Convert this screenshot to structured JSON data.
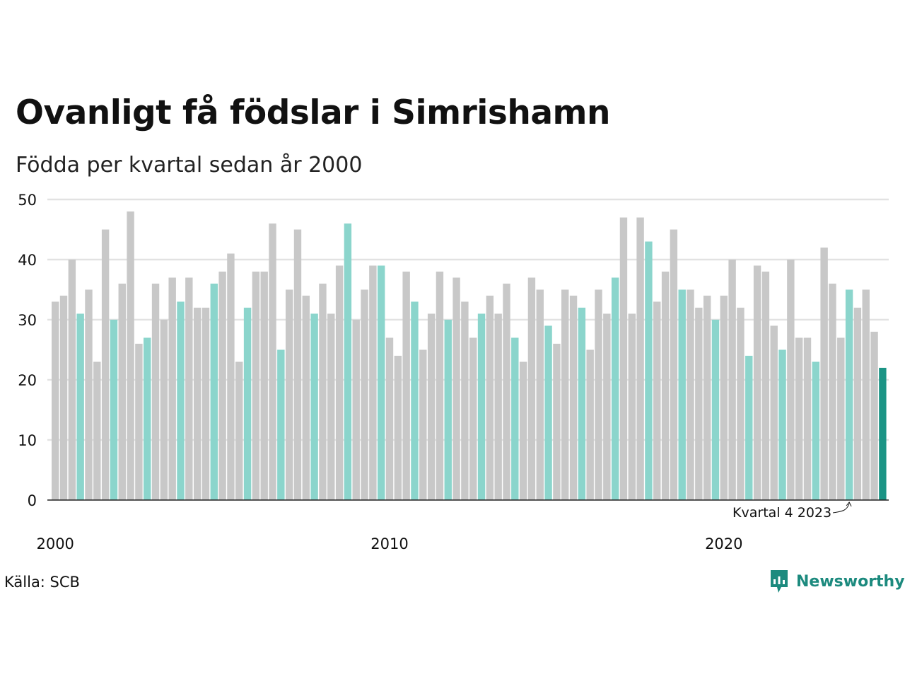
{
  "header": {
    "title": "Ovanligt få födslar i Simrishamn",
    "subtitle": "Födda per kvartal sedan år 2000"
  },
  "footer": {
    "source": "Källa: SCB",
    "brand": "Newsworthy"
  },
  "colors": {
    "bar_default": "#c8c8c8",
    "bar_q4": "#8bd5cc",
    "bar_latest": "#1b9485",
    "gridline": "#e2e2e2",
    "axis": "#222222",
    "brand": "#1c8a7e"
  },
  "chart_data": {
    "type": "bar",
    "title": "Ovanligt få födslar i Simrishamn",
    "subtitle": "Födda per kvartal sedan år 2000",
    "xlabel": "",
    "ylabel": "",
    "ylim": [
      0,
      50
    ],
    "y_ticks": [
      0,
      10,
      20,
      30,
      40,
      50
    ],
    "x_ticks": [
      "2000",
      "2010",
      "2020"
    ],
    "grid": "horizontal",
    "categories": [
      "2000 Q1",
      "2000 Q2",
      "2000 Q3",
      "2000 Q4",
      "2001 Q1",
      "2001 Q2",
      "2001 Q3",
      "2001 Q4",
      "2002 Q1",
      "2002 Q2",
      "2002 Q3",
      "2002 Q4",
      "2003 Q1",
      "2003 Q2",
      "2003 Q3",
      "2003 Q4",
      "2004 Q1",
      "2004 Q2",
      "2004 Q3",
      "2004 Q4",
      "2005 Q1",
      "2005 Q2",
      "2005 Q3",
      "2005 Q4",
      "2006 Q1",
      "2006 Q2",
      "2006 Q3",
      "2006 Q4",
      "2007 Q1",
      "2007 Q2",
      "2007 Q3",
      "2007 Q4",
      "2008 Q1",
      "2008 Q2",
      "2008 Q3",
      "2008 Q4",
      "2009 Q1",
      "2009 Q2",
      "2009 Q3",
      "2009 Q4",
      "2010 Q1",
      "2010 Q2",
      "2010 Q3",
      "2010 Q4",
      "2011 Q1",
      "2011 Q2",
      "2011 Q3",
      "2011 Q4",
      "2012 Q1",
      "2012 Q2",
      "2012 Q3",
      "2012 Q4",
      "2013 Q1",
      "2013 Q2",
      "2013 Q3",
      "2013 Q4",
      "2014 Q1",
      "2014 Q2",
      "2014 Q3",
      "2014 Q4",
      "2015 Q1",
      "2015 Q2",
      "2015 Q3",
      "2015 Q4",
      "2016 Q1",
      "2016 Q2",
      "2016 Q3",
      "2016 Q4",
      "2017 Q1",
      "2017 Q2",
      "2017 Q3",
      "2017 Q4",
      "2018 Q1",
      "2018 Q2",
      "2018 Q3",
      "2018 Q4",
      "2019 Q1",
      "2019 Q2",
      "2019 Q3",
      "2019 Q4",
      "2020 Q1",
      "2020 Q2",
      "2020 Q3",
      "2020 Q4",
      "2021 Q1",
      "2021 Q2",
      "2021 Q3",
      "2021 Q4",
      "2022 Q1",
      "2022 Q2",
      "2022 Q3",
      "2022 Q4",
      "2023 Q1",
      "2023 Q2",
      "2023 Q3",
      "2023 Q4",
      "2024 Q1",
      "2024 Q2",
      "2024 Q3",
      "2024 Q4"
    ],
    "values": [
      33,
      34,
      40,
      31,
      35,
      23,
      45,
      30,
      36,
      48,
      26,
      27,
      36,
      30,
      37,
      33,
      37,
      32,
      32,
      36,
      38,
      41,
      23,
      32,
      38,
      38,
      46,
      25,
      35,
      45,
      34,
      31,
      36,
      31,
      39,
      46,
      30,
      35,
      39,
      39,
      27,
      24,
      38,
      33,
      25,
      31,
      38,
      30,
      37,
      33,
      27,
      31,
      34,
      31,
      36,
      27,
      23,
      37,
      35,
      29,
      26,
      35,
      34,
      32,
      25,
      35,
      31,
      37,
      47,
      31,
      47,
      43,
      33,
      38,
      45,
      35,
      35,
      32,
      34,
      30,
      34,
      40,
      32,
      24,
      39,
      38,
      29,
      25,
      40,
      27,
      27,
      23,
      42,
      36,
      27,
      35,
      32,
      35,
      28,
      22
    ],
    "highlight": {
      "q4_color": "#8bd5cc",
      "latest_color": "#1b9485",
      "other_color": "#c8c8c8"
    },
    "annotation": {
      "text": "Kvartal 4 2023",
      "category": "2023 Q4"
    }
  }
}
